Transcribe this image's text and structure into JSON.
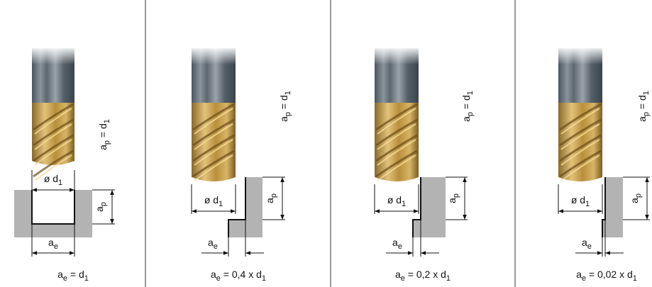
{
  "panels": [
    {
      "ap_eq": [
        "a",
        "p",
        " = d",
        "1"
      ],
      "diameter": [
        "ø d",
        "1"
      ],
      "ap": [
        "a",
        "p"
      ],
      "ae": [
        "a",
        "e"
      ],
      "caption": [
        "a",
        "e",
        " = d",
        "1"
      ]
    },
    {
      "ap_eq": [
        "a",
        "p",
        " = d",
        "1"
      ],
      "diameter": [
        "ø d",
        "1"
      ],
      "ap": [
        "a",
        "p"
      ],
      "ae": [
        "a",
        "e"
      ],
      "caption": [
        "a",
        "e",
        " = 0,4 x d",
        "1"
      ]
    },
    {
      "ap_eq": [
        "a",
        "p",
        " = d",
        "1"
      ],
      "diameter": [
        "ø d",
        "1"
      ],
      "ap": [
        "a",
        "p"
      ],
      "ae": [
        "a",
        "e"
      ],
      "caption": [
        "a",
        "e",
        " = 0,2 x d",
        "1"
      ]
    },
    {
      "ap_eq": [
        "a",
        "p",
        " = d",
        "1"
      ],
      "diameter": [
        "ø d",
        "1"
      ],
      "ap": [
        "a",
        "p"
      ],
      "ae": [
        "a",
        "e"
      ],
      "caption": [
        "a",
        "e",
        " = 0,02 x d",
        "1"
      ]
    }
  ]
}
